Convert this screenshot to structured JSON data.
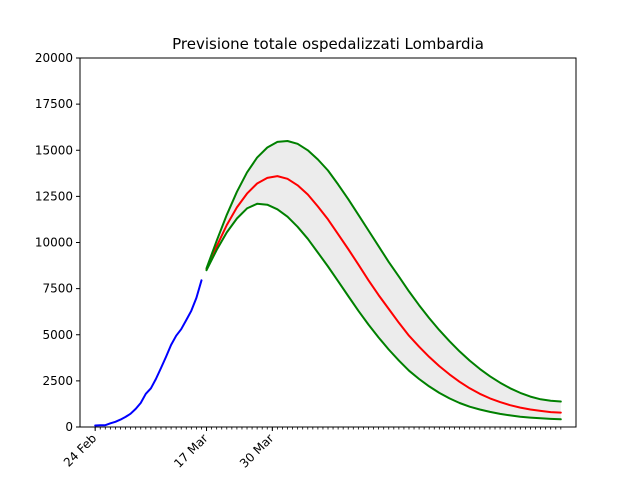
{
  "chart_data": {
    "type": "line",
    "title": "Previsione totale ospedalizzati Lombardia",
    "xlabel": "",
    "ylabel": "",
    "ylim": [
      0,
      20000
    ],
    "yticks": [
      0,
      2500,
      5000,
      7500,
      10000,
      12500,
      15000,
      17500,
      20000
    ],
    "xlim": [
      "2020-02-21",
      "2020-05-29"
    ],
    "xticks": [
      {
        "date": "2020-02-24",
        "label": "24 Feb"
      },
      {
        "date": "2020-03-17",
        "label": "17 Mar"
      },
      {
        "date": "2020-03-30",
        "label": "30 Mar"
      }
    ],
    "minor_ticks": "daily",
    "grid": false,
    "colors": {
      "observed": "#0000ff",
      "forecast": "#ff0000",
      "bounds": "#008000",
      "band": "#ececec"
    },
    "series": [
      {
        "role": "observed",
        "x": [
          "2020-02-24",
          "2020-02-25",
          "2020-02-26",
          "2020-02-27",
          "2020-02-28",
          "2020-02-29",
          "2020-03-01",
          "2020-03-02",
          "2020-03-03",
          "2020-03-04",
          "2020-03-05",
          "2020-03-06",
          "2020-03-07",
          "2020-03-08",
          "2020-03-09",
          "2020-03-10",
          "2020-03-11",
          "2020-03-12",
          "2020-03-13",
          "2020-03-14",
          "2020-03-15",
          "2020-03-16"
        ],
        "y": [
          80,
          90,
          100,
          200,
          280,
          400,
          550,
          720,
          980,
          1300,
          1800,
          2100,
          2600,
          3200,
          3800,
          4450,
          4950,
          5300,
          5800,
          6300,
          7000,
          7950
        ]
      },
      {
        "role": "forecast",
        "x": [
          "2020-03-17",
          "2020-03-19",
          "2020-03-21",
          "2020-03-23",
          "2020-03-25",
          "2020-03-27",
          "2020-03-29",
          "2020-03-31",
          "2020-04-02",
          "2020-04-04",
          "2020-04-06",
          "2020-04-08",
          "2020-04-10",
          "2020-04-12",
          "2020-04-14",
          "2020-04-16",
          "2020-04-18",
          "2020-04-20",
          "2020-04-22",
          "2020-04-24",
          "2020-04-26",
          "2020-04-28",
          "2020-04-30",
          "2020-05-02",
          "2020-05-04",
          "2020-05-06",
          "2020-05-08",
          "2020-05-10",
          "2020-05-12",
          "2020-05-14",
          "2020-05-16",
          "2020-05-18",
          "2020-05-20",
          "2020-05-22",
          "2020-05-24",
          "2020-05-26"
        ],
        "y": [
          8550,
          9800,
          10950,
          11900,
          12650,
          13200,
          13500,
          13600,
          13450,
          13100,
          12600,
          11950,
          11250,
          10450,
          9650,
          8800,
          7950,
          7150,
          6400,
          5650,
          4950,
          4350,
          3800,
          3300,
          2850,
          2450,
          2100,
          1800,
          1550,
          1350,
          1180,
          1050,
          950,
          870,
          810,
          780
        ]
      },
      {
        "role": "upper-bound",
        "x": [
          "2020-03-17",
          "2020-03-19",
          "2020-03-21",
          "2020-03-23",
          "2020-03-25",
          "2020-03-27",
          "2020-03-29",
          "2020-03-31",
          "2020-04-02",
          "2020-04-04",
          "2020-04-06",
          "2020-04-08",
          "2020-04-10",
          "2020-04-12",
          "2020-04-14",
          "2020-04-16",
          "2020-04-18",
          "2020-04-20",
          "2020-04-22",
          "2020-04-24",
          "2020-04-26",
          "2020-04-28",
          "2020-04-30",
          "2020-05-02",
          "2020-05-04",
          "2020-05-06",
          "2020-05-08",
          "2020-05-10",
          "2020-05-12",
          "2020-05-14",
          "2020-05-16",
          "2020-05-18",
          "2020-05-20",
          "2020-05-22",
          "2020-05-24",
          "2020-05-26"
        ],
        "y": [
          8600,
          10100,
          11500,
          12750,
          13800,
          14600,
          15150,
          15450,
          15500,
          15350,
          15000,
          14500,
          13900,
          13150,
          12350,
          11500,
          10650,
          9800,
          8950,
          8150,
          7350,
          6600,
          5900,
          5250,
          4650,
          4100,
          3600,
          3150,
          2750,
          2400,
          2100,
          1850,
          1650,
          1500,
          1420,
          1380
        ]
      },
      {
        "role": "lower-bound",
        "x": [
          "2020-03-17",
          "2020-03-19",
          "2020-03-21",
          "2020-03-23",
          "2020-03-25",
          "2020-03-27",
          "2020-03-29",
          "2020-03-31",
          "2020-04-02",
          "2020-04-04",
          "2020-04-06",
          "2020-04-08",
          "2020-04-10",
          "2020-04-12",
          "2020-04-14",
          "2020-04-16",
          "2020-04-18",
          "2020-04-20",
          "2020-04-22",
          "2020-04-24",
          "2020-04-26",
          "2020-04-28",
          "2020-04-30",
          "2020-05-02",
          "2020-05-04",
          "2020-05-06",
          "2020-05-08",
          "2020-05-10",
          "2020-05-12",
          "2020-05-14",
          "2020-05-16",
          "2020-05-18",
          "2020-05-20",
          "2020-05-22",
          "2020-05-24",
          "2020-05-26"
        ],
        "y": [
          8500,
          9600,
          10550,
          11300,
          11850,
          12100,
          12050,
          11800,
          11400,
          10850,
          10200,
          9450,
          8700,
          7900,
          7100,
          6300,
          5550,
          4850,
          4200,
          3600,
          3050,
          2600,
          2200,
          1850,
          1550,
          1300,
          1100,
          950,
          820,
          710,
          630,
          560,
          510,
          470,
          440,
          420
        ]
      }
    ]
  }
}
